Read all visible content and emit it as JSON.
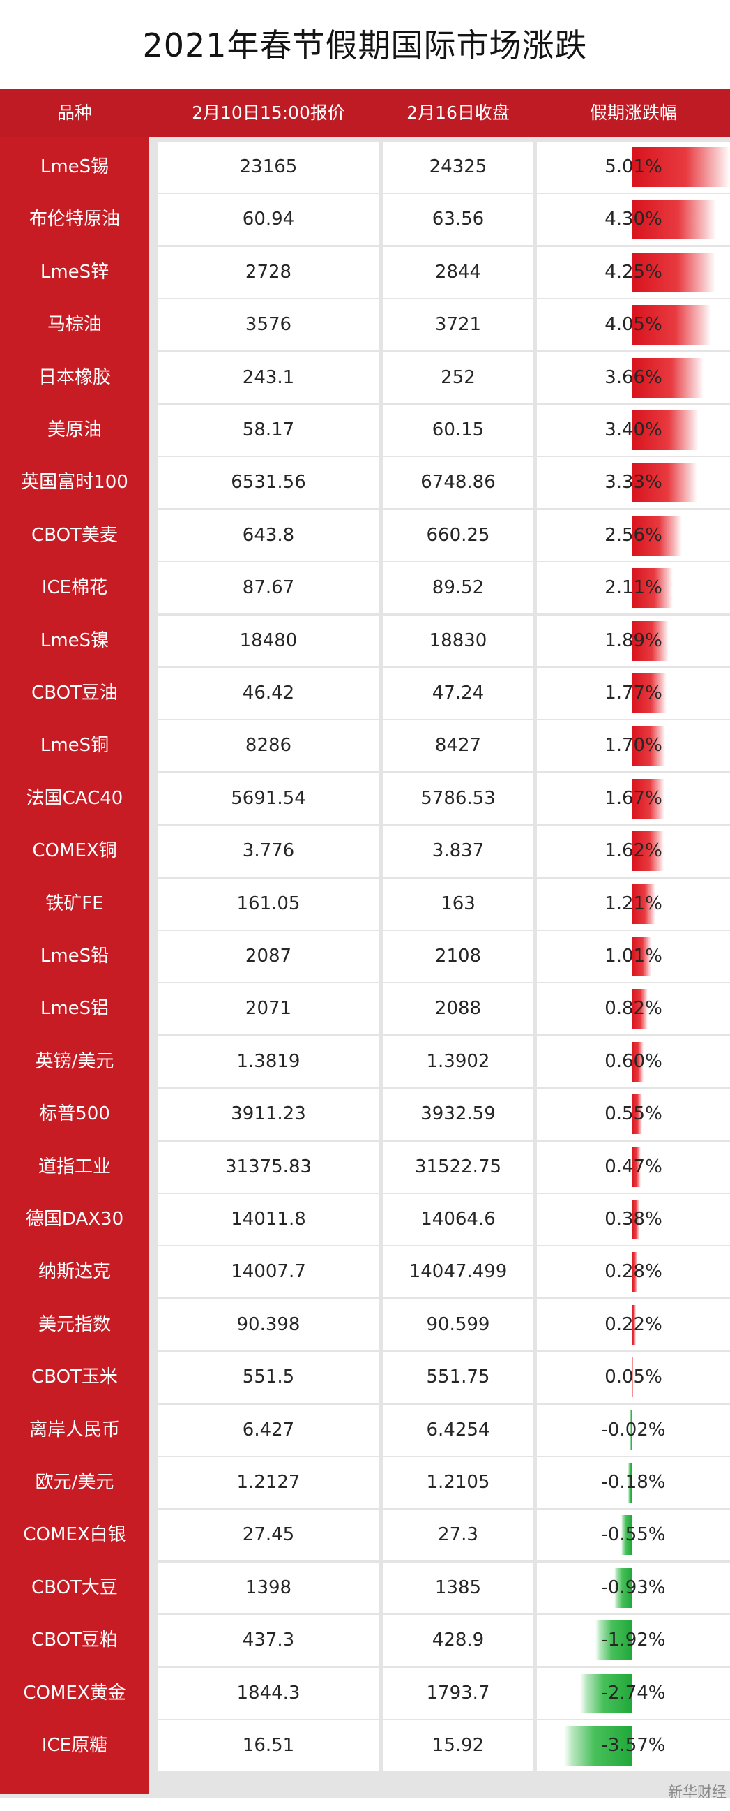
{
  "chart_data": {
    "type": "table",
    "title": "2021年春节假期国际市场涨跌",
    "columns": [
      "品种",
      "2月10日15:00报价",
      "2月16日收盘",
      "假期涨跌幅"
    ],
    "rows": [
      {
        "name": "LmeS锡",
        "open": "23165",
        "close": "24325",
        "pct_label": "5.01%",
        "pct": 5.01
      },
      {
        "name": "布伦特原油",
        "open": "60.94",
        "close": "63.56",
        "pct_label": "4.30%",
        "pct": 4.3
      },
      {
        "name": "LmeS锌",
        "open": "2728",
        "close": "2844",
        "pct_label": "4.25%",
        "pct": 4.25
      },
      {
        "name": "马棕油",
        "open": "3576",
        "close": "3721",
        "pct_label": "4.05%",
        "pct": 4.05
      },
      {
        "name": "日本橡胶",
        "open": "243.1",
        "close": "252",
        "pct_label": "3.66%",
        "pct": 3.66
      },
      {
        "name": "美原油",
        "open": "58.17",
        "close": "60.15",
        "pct_label": "3.40%",
        "pct": 3.4
      },
      {
        "name": "英国富时100",
        "open": "6531.56",
        "close": "6748.86",
        "pct_label": "3.33%",
        "pct": 3.33
      },
      {
        "name": "CBOT美麦",
        "open": "643.8",
        "close": "660.25",
        "pct_label": "2.56%",
        "pct": 2.56
      },
      {
        "name": "ICE棉花",
        "open": "87.67",
        "close": "89.52",
        "pct_label": "2.11%",
        "pct": 2.11
      },
      {
        "name": "LmeS镍",
        "open": "18480",
        "close": "18830",
        "pct_label": "1.89%",
        "pct": 1.89
      },
      {
        "name": "CBOT豆油",
        "open": "46.42",
        "close": "47.24",
        "pct_label": "1.77%",
        "pct": 1.77
      },
      {
        "name": "LmeS铜",
        "open": "8286",
        "close": "8427",
        "pct_label": "1.70%",
        "pct": 1.7
      },
      {
        "name": "法国CAC40",
        "open": "5691.54",
        "close": "5786.53",
        "pct_label": "1.67%",
        "pct": 1.67
      },
      {
        "name": "COMEX铜",
        "open": "3.776",
        "close": "3.837",
        "pct_label": "1.62%",
        "pct": 1.62
      },
      {
        "name": "铁矿FE",
        "open": "161.05",
        "close": "163",
        "pct_label": "1.21%",
        "pct": 1.21
      },
      {
        "name": "LmeS铅",
        "open": "2087",
        "close": "2108",
        "pct_label": "1.01%",
        "pct": 1.01
      },
      {
        "name": "LmeS铝",
        "open": "2071",
        "close": "2088",
        "pct_label": "0.82%",
        "pct": 0.82
      },
      {
        "name": "英镑/美元",
        "open": "1.3819",
        "close": "1.3902",
        "pct_label": "0.60%",
        "pct": 0.6
      },
      {
        "name": "标普500",
        "open": "3911.23",
        "close": "3932.59",
        "pct_label": "0.55%",
        "pct": 0.55
      },
      {
        "name": "道指工业",
        "open": "31375.83",
        "close": "31522.75",
        "pct_label": "0.47%",
        "pct": 0.47
      },
      {
        "name": "德国DAX30",
        "open": "14011.8",
        "close": "14064.6",
        "pct_label": "0.38%",
        "pct": 0.38
      },
      {
        "name": "纳斯达克",
        "open": "14007.7",
        "close": "14047.499",
        "pct_label": "0.28%",
        "pct": 0.28
      },
      {
        "name": "美元指数",
        "open": "90.398",
        "close": "90.599",
        "pct_label": "0.22%",
        "pct": 0.22
      },
      {
        "name": "CBOT玉米",
        "open": "551.5",
        "close": "551.75",
        "pct_label": "0.05%",
        "pct": 0.05
      },
      {
        "name": "离岸人民币",
        "open": "6.427",
        "close": "6.4254",
        "pct_label": "-0.02%",
        "pct": -0.02
      },
      {
        "name": "欧元/美元",
        "open": "1.2127",
        "close": "1.2105",
        "pct_label": "-0.18%",
        "pct": -0.18
      },
      {
        "name": "COMEX白银",
        "open": "27.45",
        "close": "27.3",
        "pct_label": "-0.55%",
        "pct": -0.55
      },
      {
        "name": "CBOT大豆",
        "open": "1398",
        "close": "1385",
        "pct_label": "-0.93%",
        "pct": -0.93
      },
      {
        "name": "CBOT豆粕",
        "open": "437.3",
        "close": "428.9",
        "pct_label": "-1.92%",
        "pct": -1.92
      },
      {
        "name": "COMEX黄金",
        "open": "1844.3",
        "close": "1793.7",
        "pct_label": "-2.74%",
        "pct": -2.74
      },
      {
        "name": "ICE原糖",
        "open": "16.51",
        "close": "15.92",
        "pct_label": "-3.57%",
        "pct": -3.57
      }
    ],
    "bar_scale_max": 5.01,
    "colors": {
      "header": "#bf1b24",
      "positive_bar": "#d8131d",
      "negative_bar": "#21a83a"
    }
  },
  "watermark": "新华财经"
}
